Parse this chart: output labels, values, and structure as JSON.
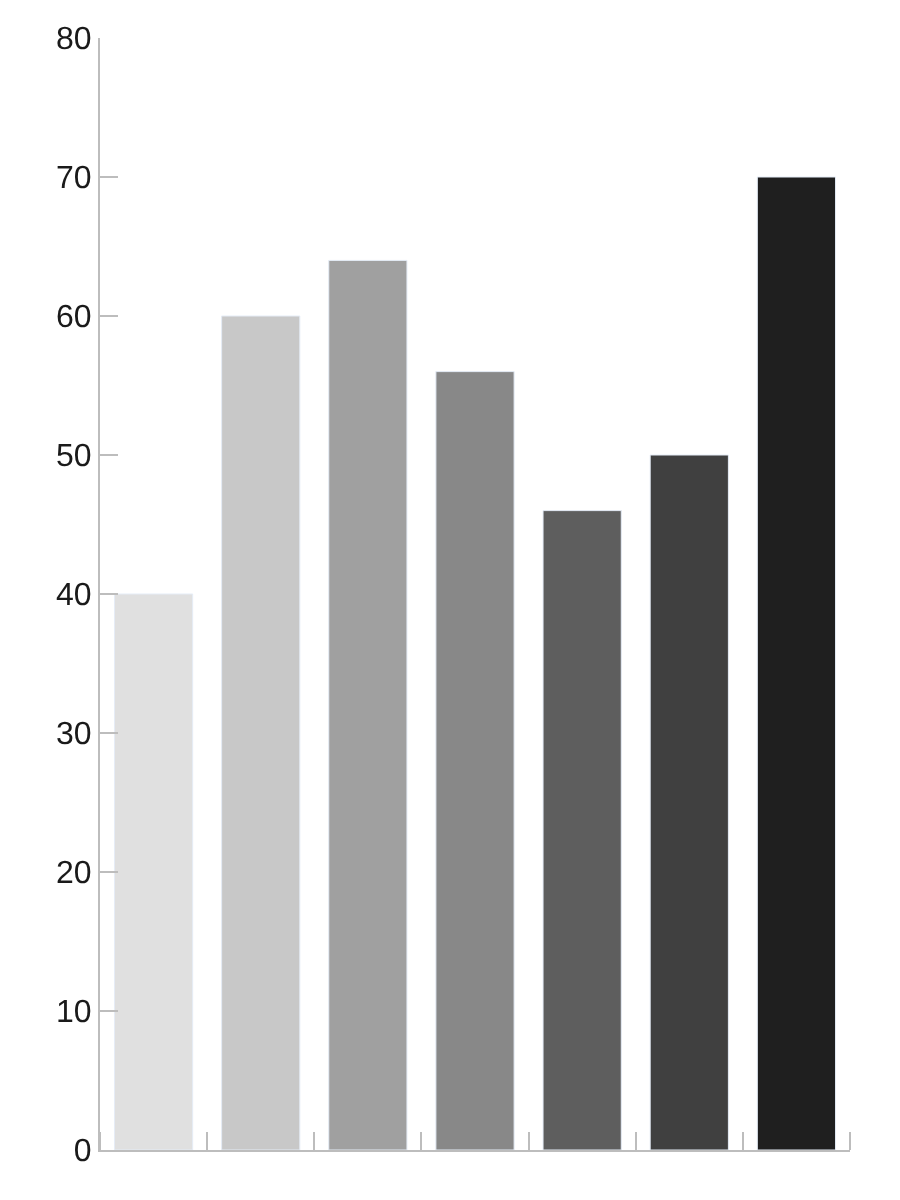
{
  "chart_data": {
    "type": "bar",
    "categories": [
      null,
      null,
      null,
      null,
      null,
      null,
      null
    ],
    "values": [
      40,
      60,
      64,
      56,
      46,
      50,
      70
    ],
    "colors": [
      "#e0e0e0",
      "#c8c8c8",
      "#a0a0a0",
      "#888888",
      "#5e5e5e",
      "#404040",
      "#1f1f1f"
    ],
    "ylim": [
      0,
      80
    ],
    "yticks": [
      0,
      10,
      20,
      30,
      40,
      50,
      60,
      70,
      80
    ]
  }
}
